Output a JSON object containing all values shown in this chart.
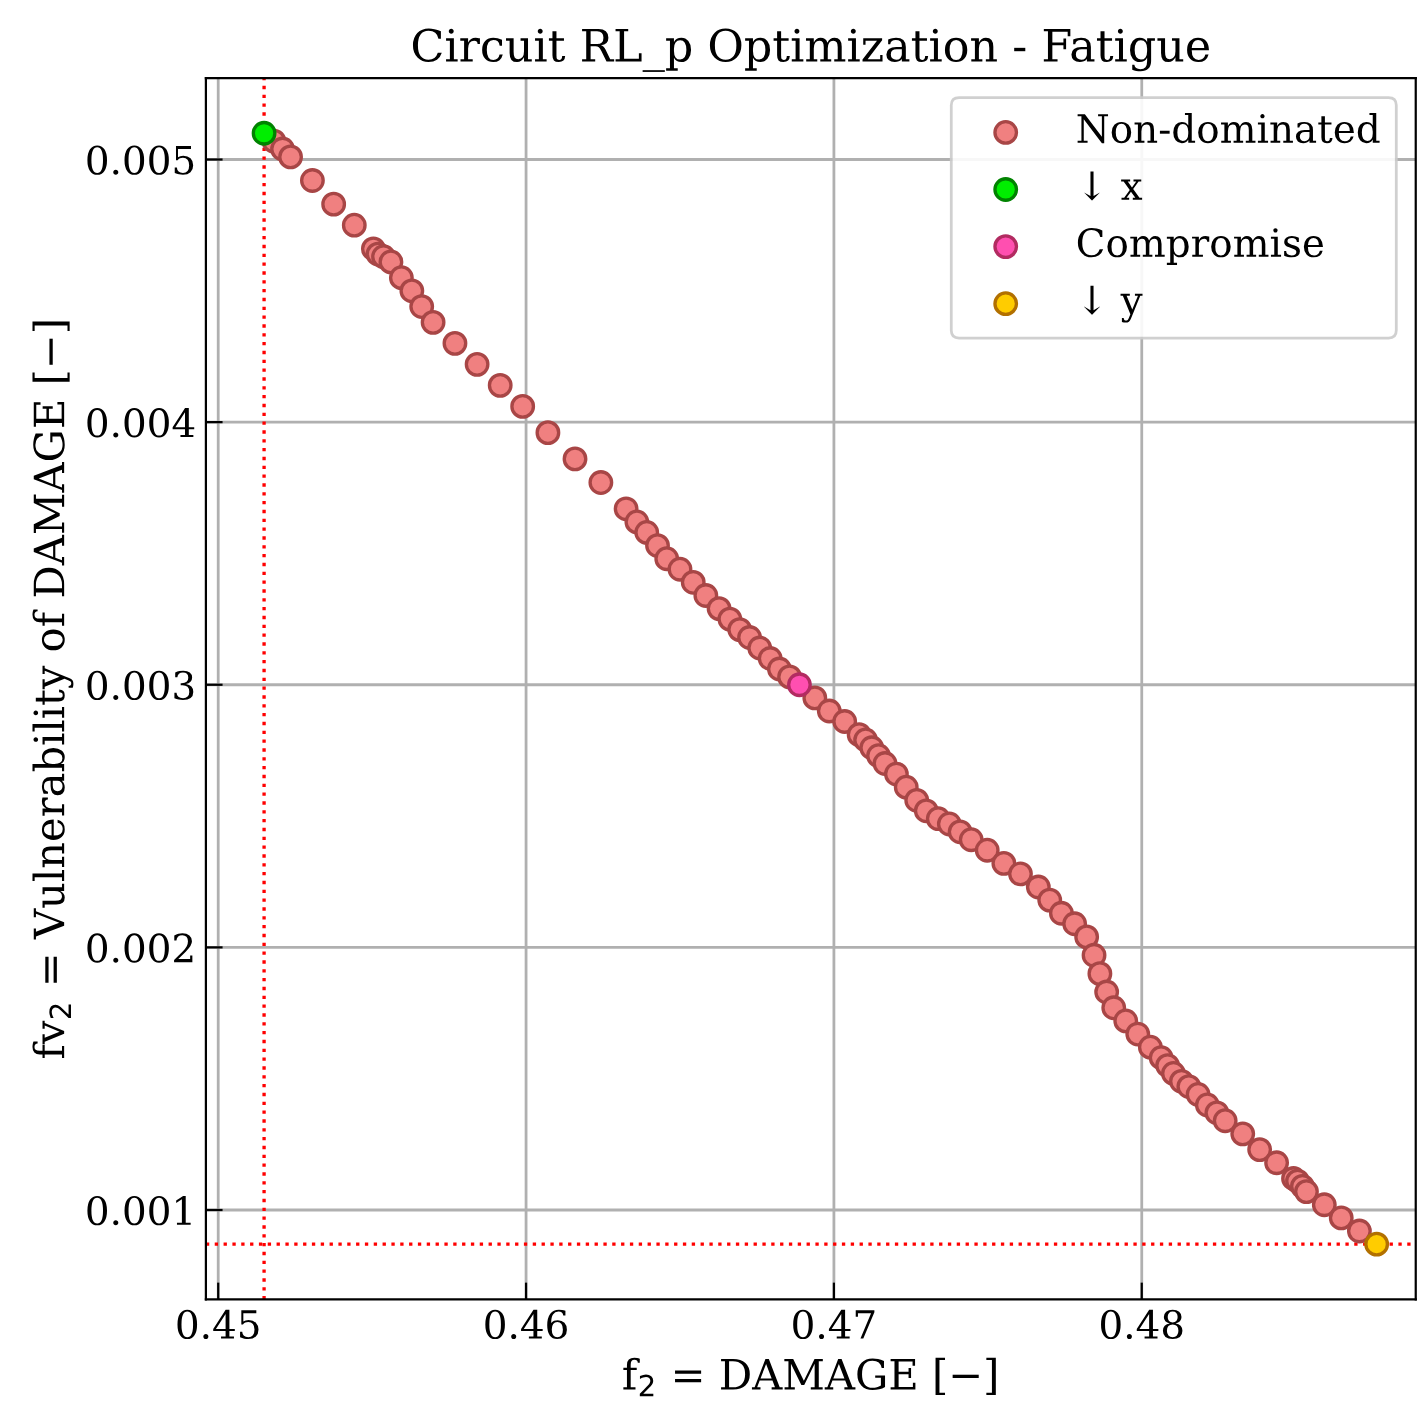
{
  "chart_data": {
    "type": "scatter",
    "title": "Circuit RL_p Optimization - Fatigue",
    "xlabel": "f$_{2}$ = DAMAGE [−]",
    "ylabel": "fv$_{2}$ = Vulnerability of DAMAGE [−]",
    "xlim": [
      0.4496,
      0.4889
    ],
    "ylim": [
      0.00066,
      0.00531
    ],
    "xticks": [
      0.45,
      0.46,
      0.47,
      0.48
    ],
    "yticks": [
      0.001,
      0.002,
      0.003,
      0.004,
      0.005
    ],
    "grid": true,
    "legend": "top right",
    "marker": "circle",
    "ref_lines": [
      {
        "axis": "x",
        "value": 0.45149,
        "color": "#ff0000",
        "line_style": "dotted"
      },
      {
        "axis": "y",
        "value": 0.00087,
        "color": "#ff0000",
        "line_style": "dotted"
      }
    ],
    "series": [
      {
        "name": "Non-dominated",
        "color": "#f08080",
        "x": [
          0.45181,
          0.45209,
          0.45235,
          0.45306,
          0.45375,
          0.45442,
          0.45504,
          0.45519,
          0.45537,
          0.45561,
          0.45595,
          0.45629,
          0.45661,
          0.45698,
          0.45769,
          0.45841,
          0.45916,
          0.45989,
          0.46071,
          0.46159,
          0.46243,
          0.46325,
          0.4636,
          0.46392,
          0.46427,
          0.46457,
          0.465,
          0.46543,
          0.46584,
          0.46627,
          0.46662,
          0.46694,
          0.46726,
          0.46759,
          0.46793,
          0.46823,
          0.46856,
          0.46938,
          0.46985,
          0.47035,
          0.47082,
          0.47103,
          0.47123,
          0.47145,
          0.47166,
          0.47203,
          0.47235,
          0.47269,
          0.473,
          0.47339,
          0.47375,
          0.4741,
          0.47446,
          0.47498,
          0.47552,
          0.47606,
          0.47664,
          0.47701,
          0.47739,
          0.47782,
          0.47821,
          0.47845,
          0.47864,
          0.47886,
          0.47909,
          0.47948,
          0.47987,
          0.48028,
          0.48063,
          0.48084,
          0.48103,
          0.48129,
          0.48153,
          0.48183,
          0.48213,
          0.48244,
          0.48271,
          0.48328,
          0.48383,
          0.48438,
          0.48493,
          0.48506,
          0.48522,
          0.48535,
          0.48593,
          0.48648,
          0.48707
        ],
        "values": [
          0.00507,
          0.00504,
          0.00501,
          0.00492,
          0.00483,
          0.00475,
          0.00466,
          0.00464,
          0.00463,
          0.00461,
          0.00455,
          0.0045,
          0.00444,
          0.00438,
          0.0043,
          0.00422,
          0.00414,
          0.00406,
          0.00396,
          0.00386,
          0.00377,
          0.00367,
          0.00362,
          0.00358,
          0.00353,
          0.00348,
          0.00344,
          0.00339,
          0.00334,
          0.00329,
          0.00325,
          0.00321,
          0.00318,
          0.00314,
          0.0031,
          0.00306,
          0.00303,
          0.00295,
          0.0029,
          0.00286,
          0.00281,
          0.00279,
          0.00276,
          0.00273,
          0.0027,
          0.00266,
          0.00261,
          0.00256,
          0.00252,
          0.00249,
          0.00247,
          0.00244,
          0.00241,
          0.00237,
          0.00232,
          0.00228,
          0.00223,
          0.00218,
          0.00213,
          0.00209,
          0.00204,
          0.00197,
          0.0019,
          0.00183,
          0.00177,
          0.00172,
          0.00167,
          0.00162,
          0.00158,
          0.00155,
          0.00152,
          0.00149,
          0.00147,
          0.00144,
          0.0014,
          0.00137,
          0.00134,
          0.00129,
          0.00123,
          0.00118,
          0.00112,
          0.00111,
          0.00109,
          0.00107,
          0.00102,
          0.00097,
          0.00092
        ]
      },
      {
        "name": "↓ x",
        "color": "#00ee00",
        "x": [
          0.45149
        ],
        "values": [
          0.0051
        ]
      },
      {
        "name": "Compromise",
        "color": "#ff4fb0",
        "x": [
          0.46888
        ],
        "values": [
          0.003
        ]
      },
      {
        "name": "↓ y",
        "color": "#ffcc00",
        "x": [
          0.48763
        ],
        "values": [
          0.00087
        ]
      }
    ]
  }
}
